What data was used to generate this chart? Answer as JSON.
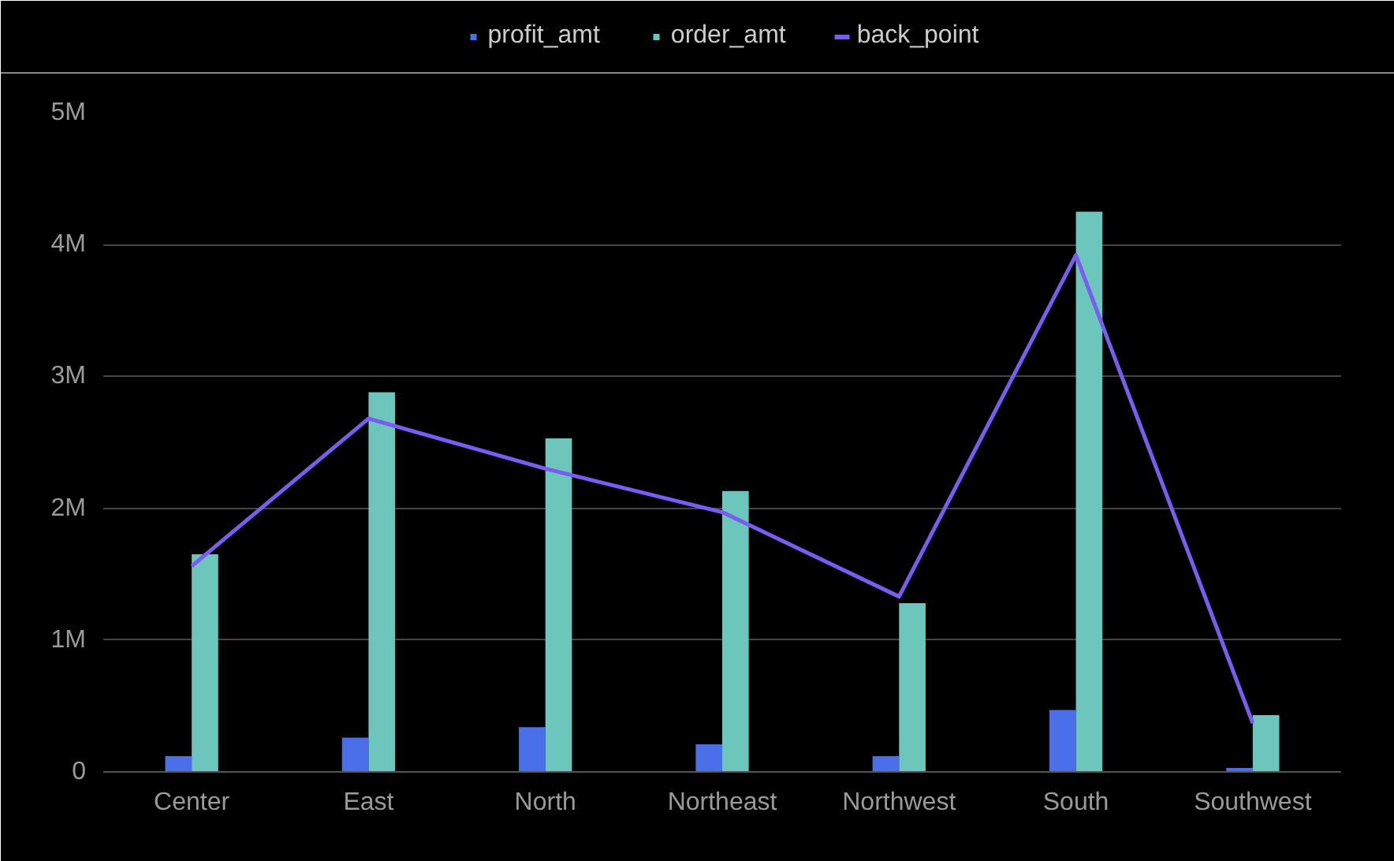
{
  "chart_data": {
    "type": "bar",
    "categories": [
      "Center",
      "East",
      "North",
      "Northeast",
      "Northwest",
      "South",
      "Southwest"
    ],
    "series": [
      {
        "name": "profit_amt",
        "color": "#4a6fe8",
        "values": [
          120000,
          260000,
          340000,
          210000,
          120000,
          470000,
          30000
        ]
      },
      {
        "name": "order_amt",
        "color": "#6cc6bc",
        "values": [
          1650000,
          2880000,
          2530000,
          2130000,
          1280000,
          4250000,
          430000
        ]
      },
      {
        "name": "back_point",
        "type": "line",
        "color": "#7a5cf0",
        "values": [
          1560000,
          2680000,
          2300000,
          1970000,
          1330000,
          3920000,
          370000
        ]
      }
    ],
    "ylim": [
      0,
      5000000
    ],
    "yticks": [
      {
        "value": 0,
        "label": "0"
      },
      {
        "value": 1000000,
        "label": "1M"
      },
      {
        "value": 2000000,
        "label": "2M"
      },
      {
        "value": 3000000,
        "label": "3M"
      },
      {
        "value": 4000000,
        "label": "4M"
      },
      {
        "value": 5000000,
        "label": "5M"
      }
    ],
    "grid": "y",
    "legend": "top",
    "marker": "none",
    "line_style": "solid"
  }
}
